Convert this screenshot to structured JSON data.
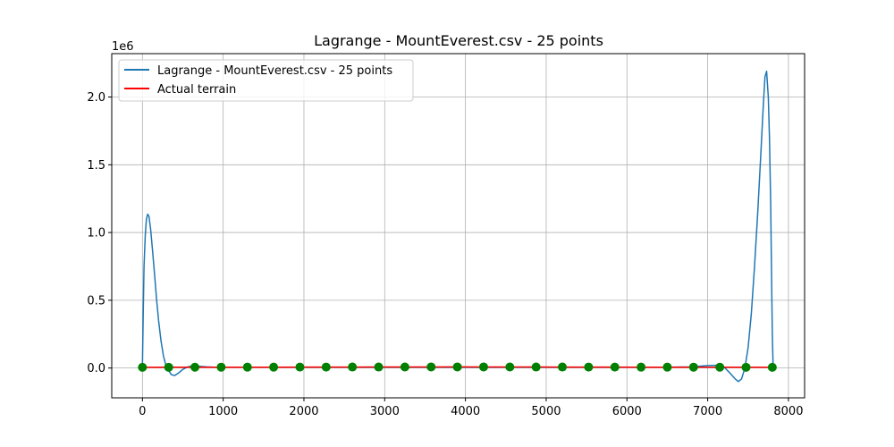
{
  "chart_data": {
    "type": "line",
    "title": "Lagrange - MountEverest.csv - 25 points",
    "xlabel": "",
    "ylabel": "",
    "y_offset_text": "1e6",
    "xlim": [
      -380,
      8200
    ],
    "ylim": [
      -220000,
      2320000
    ],
    "x_ticks": [
      0,
      1000,
      2000,
      3000,
      4000,
      5000,
      6000,
      7000,
      8000
    ],
    "x_tick_labels": [
      "0",
      "1000",
      "2000",
      "3000",
      "4000",
      "5000",
      "6000",
      "7000",
      "8000"
    ],
    "y_ticks": [
      0,
      500000,
      1000000,
      1500000,
      2000000
    ],
    "y_tick_labels": [
      "0.0",
      "0.5",
      "1.0",
      "1.5",
      "2.0"
    ],
    "grid": true,
    "legend_position": "top-left",
    "series": [
      {
        "name": "Lagrange - MountEverest.csv - 25 points",
        "color": "#1f77b4",
        "style": "line",
        "x": [
          0,
          10,
          20,
          35,
          50,
          65,
          80,
          100,
          125,
          150,
          175,
          200,
          230,
          260,
          290,
          325,
          360,
          400,
          450,
          500,
          560,
          620,
          700,
          800,
          900,
          1000,
          1500,
          2000,
          3000,
          4000,
          5000,
          6000,
          6500,
          6800,
          7000,
          7100,
          7200,
          7280,
          7340,
          7380,
          7420,
          7460,
          7500,
          7540,
          7580,
          7620,
          7660,
          7690,
          7710,
          7730,
          7750,
          7765,
          7780,
          7790,
          7800,
          7810
        ],
        "y": [
          5000,
          400000,
          750000,
          980000,
          1100000,
          1135000,
          1120000,
          1030000,
          870000,
          690000,
          510000,
          350000,
          200000,
          90000,
          20000,
          -20000,
          -50000,
          -55000,
          -35000,
          -10000,
          8000,
          15000,
          12000,
          8000,
          6000,
          6000,
          6000,
          6000,
          6000,
          6000,
          6000,
          6000,
          6000,
          8000,
          18000,
          20000,
          8000,
          -40000,
          -80000,
          -100000,
          -80000,
          0,
          150000,
          400000,
          750000,
          1150000,
          1600000,
          1950000,
          2150000,
          2190000,
          2000000,
          1700000,
          1200000,
          700000,
          250000,
          5000
        ]
      },
      {
        "name": "Actual terrain",
        "color": "#ff0000",
        "style": "line",
        "x": [
          0,
          325,
          650,
          975,
          1300,
          1625,
          1950,
          2275,
          2600,
          2925,
          3250,
          3575,
          3900,
          4225,
          4550,
          4875,
          5200,
          5525,
          5850,
          6175,
          6500,
          6825,
          7150,
          7475,
          7800
        ],
        "y": [
          5000,
          5500,
          6000,
          6200,
          6400,
          6600,
          6800,
          7000,
          7200,
          7400,
          7600,
          7800,
          8000,
          7800,
          7600,
          7400,
          7200,
          7000,
          6800,
          6600,
          6400,
          6200,
          6000,
          5500,
          5000
        ]
      },
      {
        "name": "Interpolation nodes",
        "color": "#008000",
        "style": "markers",
        "x": [
          0,
          325,
          650,
          975,
          1300,
          1625,
          1950,
          2275,
          2600,
          2925,
          3250,
          3575,
          3900,
          4225,
          4550,
          4875,
          5200,
          5525,
          5850,
          6175,
          6500,
          6825,
          7150,
          7475,
          7800
        ],
        "y": [
          5000,
          5500,
          6000,
          6200,
          6400,
          6600,
          6800,
          7000,
          7200,
          7400,
          7600,
          7800,
          8000,
          7800,
          7600,
          7400,
          7200,
          7000,
          6800,
          6600,
          6400,
          6200,
          6000,
          5500,
          5000
        ]
      }
    ],
    "legend": [
      {
        "label": "Lagrange - MountEverest.csv - 25 points",
        "color": "#1f77b4"
      },
      {
        "label": "Actual terrain",
        "color": "#ff0000"
      }
    ]
  }
}
